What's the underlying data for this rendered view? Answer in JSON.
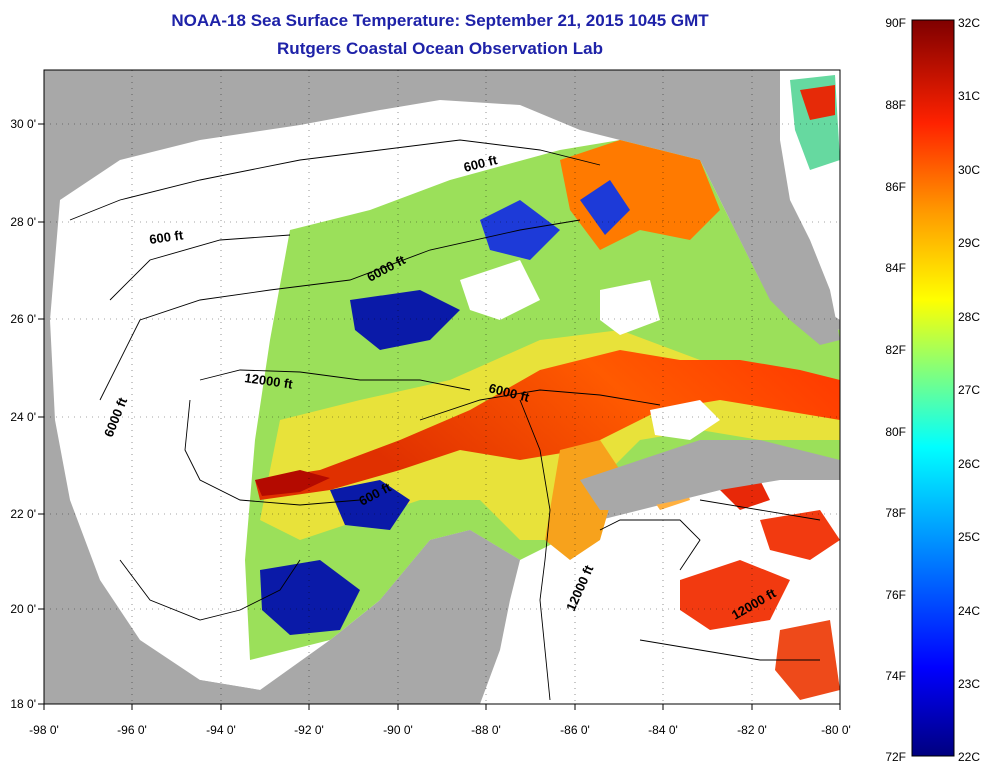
{
  "title": {
    "line1": "NOAA-18 Sea Surface Temperature:  September 21, 2015 1045 GMT",
    "line2": "Rutgers Coastal Ocean Observation Lab"
  },
  "axes": {
    "lon_ticks": [
      "-98 0'",
      "-96 0'",
      "-94 0'",
      "-92 0'",
      "-90 0'",
      "-88 0'",
      "-86 0'",
      "-84 0'",
      "-82 0'",
      "-80 0'"
    ],
    "lat_ticks": [
      "30 0'",
      "28 0'",
      "26 0'",
      "24 0'",
      "22 0'",
      "20 0'",
      "18 0'"
    ],
    "lon_range": [
      -98,
      -80
    ],
    "lat_range": [
      18,
      31
    ]
  },
  "contours": {
    "labels": [
      "600 ft",
      "600 ft",
      "6000 ft",
      "12000 ft",
      "6000 ft",
      "6000 ft",
      "600 ft",
      "12000 ft",
      "12000 ft"
    ]
  },
  "colorbar": {
    "fahrenheit_labels": [
      "90F",
      "88F",
      "86F",
      "84F",
      "82F",
      "80F",
      "78F",
      "76F",
      "74F",
      "72F"
    ],
    "celsius_labels": [
      "32C",
      "31C",
      "30C",
      "29C",
      "28C",
      "27C",
      "26C",
      "25C",
      "24C",
      "23C",
      "22C"
    ],
    "range_f": [
      72,
      90
    ],
    "range_c": [
      22,
      32
    ]
  },
  "colors": {
    "land": "#a8a8a8",
    "cloud_mask": "#ffffff",
    "title": "#1e22a8",
    "colormap": [
      "#00007f",
      "#0000ff",
      "#007fff",
      "#00ffff",
      "#7fff7f",
      "#ffff00",
      "#ff7f00",
      "#ff0000",
      "#7f0000"
    ]
  }
}
